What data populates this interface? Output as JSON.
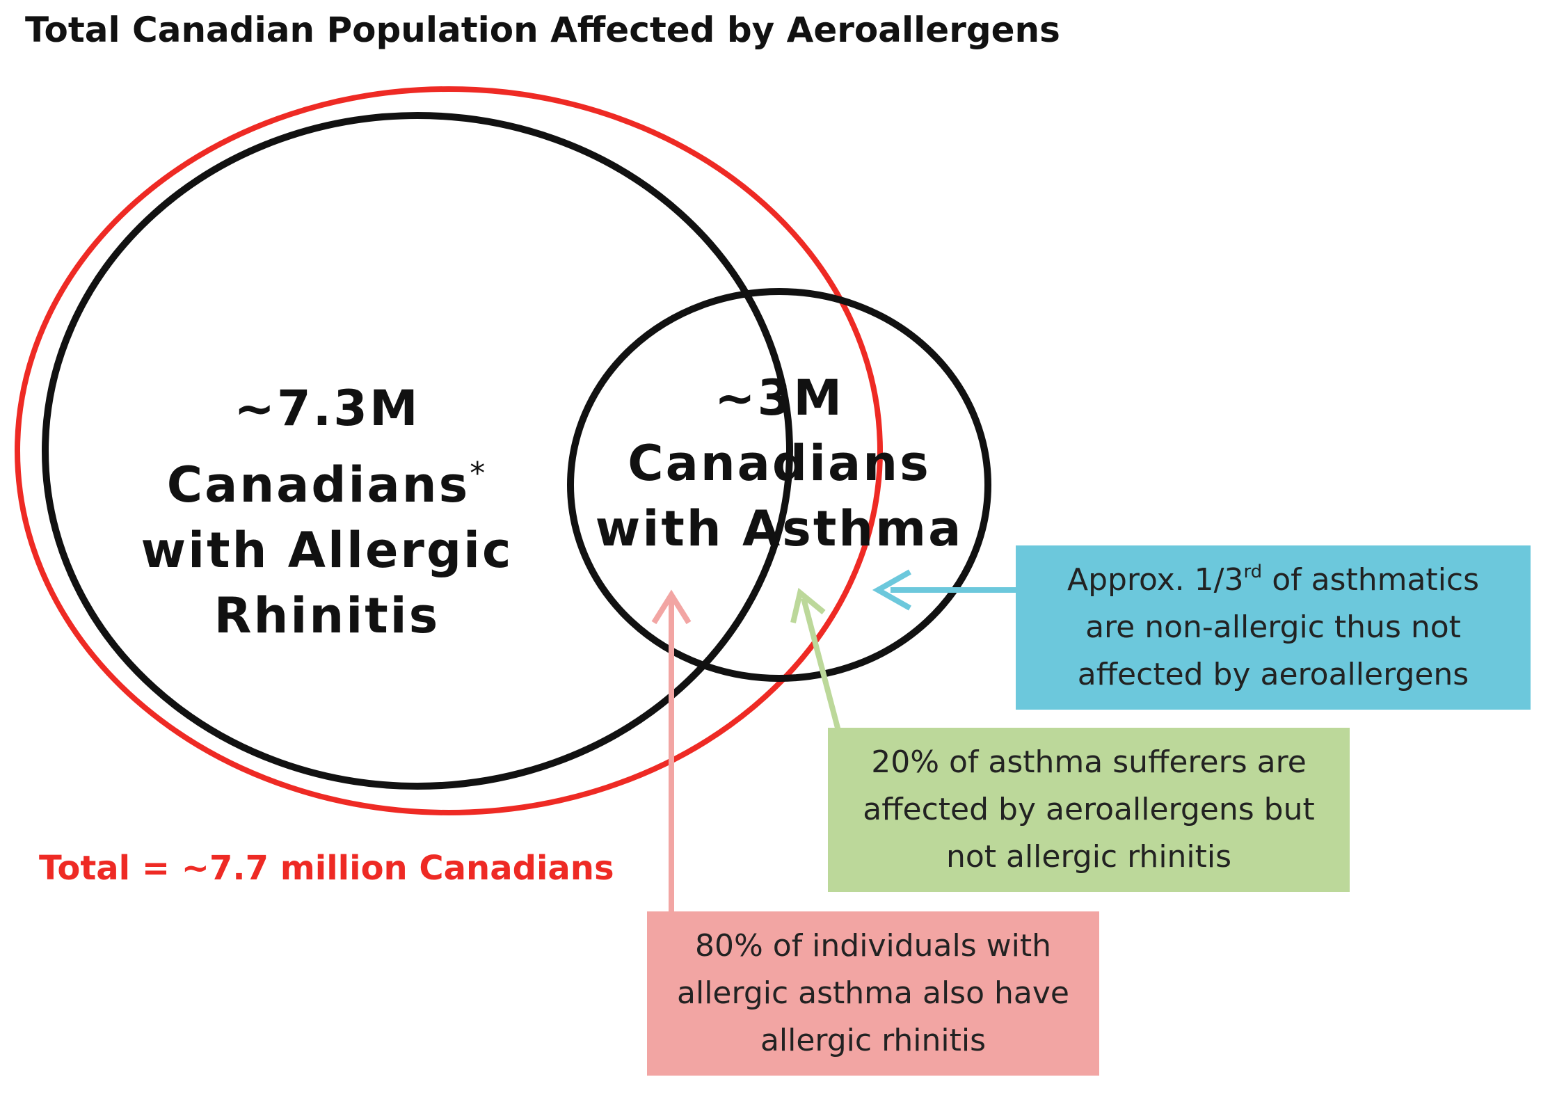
{
  "title": "Total Canadian Population Affected by Aeroallergens",
  "allergic_rhinitis": {
    "line1": "~7.3M",
    "line2": "Canadians",
    "asterisk": "*",
    "line3": "with Allergic",
    "line4": "Rhinitis"
  },
  "asthma": {
    "line1": "~3M",
    "line2": "Canadians",
    "line3": "with Asthma"
  },
  "total": "Total = ~7.7 million Canadians",
  "callouts": {
    "non_allergic": {
      "line1_pre": "Approx. 1/3",
      "line1_sup": "rd",
      "line1_post": " of asthmatics",
      "line2": "are non-allergic thus not",
      "line3": "affected by aeroallergens"
    },
    "aero_only": {
      "line1": "20% of asthma sufferers are",
      "line2": "affected by aeroallergens but",
      "line3": "not allergic rhinitis"
    },
    "overlap": {
      "line1": "80% of individuals with",
      "line2": "allergic asthma also have",
      "line3": "allergic rhinitis"
    }
  },
  "colors": {
    "total_outline": "#ee2a24",
    "set_outline": "#111111",
    "blue_callout": "#6cc8dc",
    "green_callout": "#bcd89a",
    "pink_callout": "#f2a5a3",
    "blue_arrow": "#6cc8dc",
    "green_arrow": "#bcd89a",
    "pink_arrow": "#f2a5a3"
  }
}
